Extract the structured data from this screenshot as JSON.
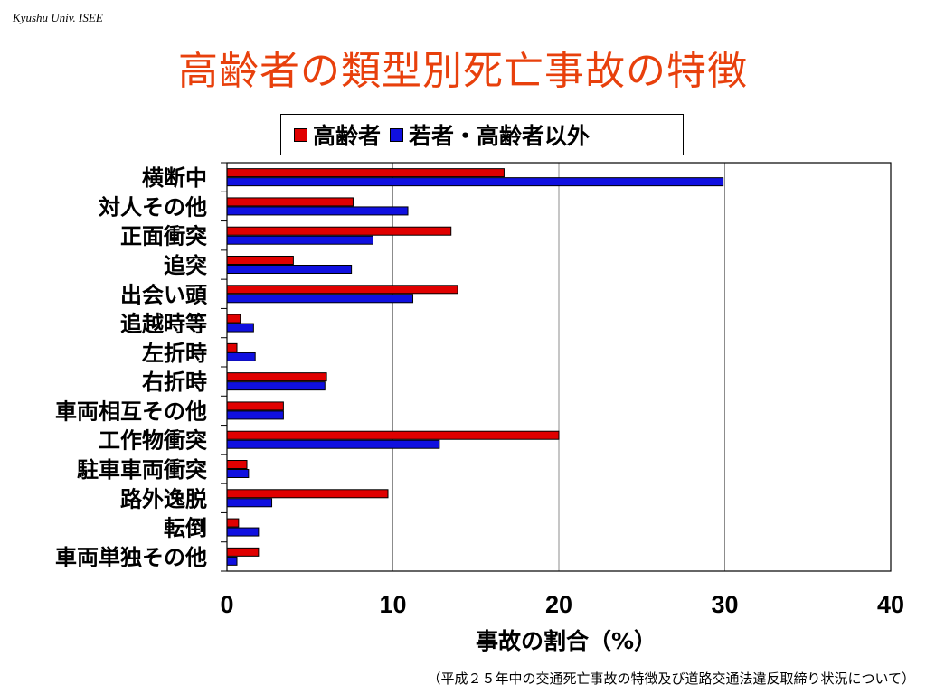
{
  "header": {
    "org_label": "Kyushu Univ. ISEE",
    "title": "高齢者の類型別死亡事故の特徴"
  },
  "footnote": "（平成２５年中の交通死亡事故の特徴及び道路交通法違反取締り状況について）",
  "chart_data": {
    "type": "bar",
    "orientation": "horizontal",
    "categories": [
      "横断中",
      "対人その他",
      "正面衝突",
      "追突",
      "出会い頭",
      "追越時等",
      "左折時",
      "右折時",
      "車両相互その他",
      "工作物衝突",
      "駐車車両衝突",
      "路外逸脱",
      "転倒",
      "車両単独その他"
    ],
    "series": [
      {
        "name": "高齢者",
        "color": "#e00000",
        "values": [
          16.7,
          7.6,
          13.5,
          4.0,
          13.9,
          0.8,
          0.6,
          6.0,
          3.4,
          20.0,
          1.2,
          9.7,
          0.7,
          1.9
        ]
      },
      {
        "name": "若者・高齢者以外",
        "color": "#1010e0",
        "values": [
          29.9,
          10.9,
          8.8,
          7.5,
          11.2,
          1.6,
          1.7,
          5.9,
          3.4,
          12.8,
          1.3,
          2.7,
          1.9,
          0.6
        ]
      }
    ],
    "xlim": [
      0,
      40
    ],
    "xticks": [
      "0",
      "10",
      "20",
      "30",
      "40"
    ],
    "xlabel": "事故の割合（%）",
    "ylabel": "",
    "grid": "vertical",
    "legend_position": "top"
  }
}
